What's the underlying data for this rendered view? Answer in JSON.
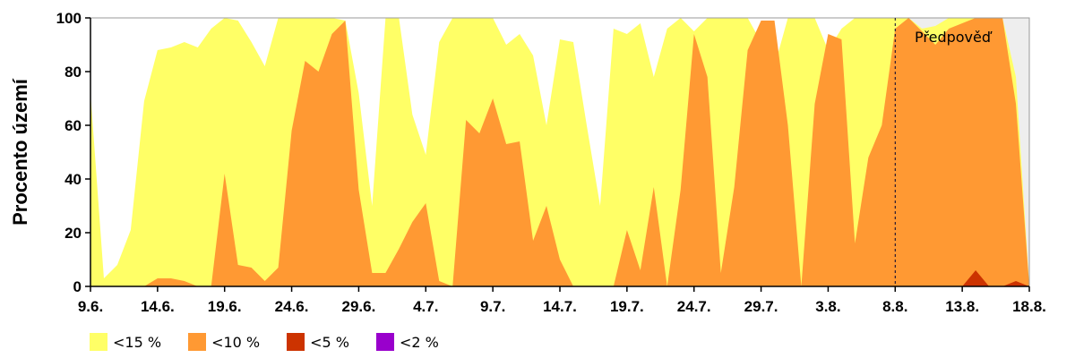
{
  "chart_data": {
    "type": "area",
    "title": "",
    "ylabel": "Procento území",
    "xlabel": "",
    "ylim": [
      0,
      100
    ],
    "y_ticks": [
      "0",
      "20",
      "40",
      "60",
      "80",
      "100"
    ],
    "x_tick_labels": [
      "9.6.",
      "14.6.",
      "19.6.",
      "24.6.",
      "29.6.",
      "4.7.",
      "9.7.",
      "14.7.",
      "19.7.",
      "24.7.",
      "29.7.",
      "3.8.",
      "8.8.",
      "13.8.",
      "18.8."
    ],
    "x_tick_step_days": 5,
    "day_count": 71,
    "forecast_start_day_index": 60,
    "annotation": "Předpověď",
    "legend_position": "bottom",
    "colors": {
      "lt15": "#ffff66",
      "lt10": "#ff9933",
      "lt5": "#cc3300",
      "lt2": "#9900cc",
      "forecast_bg": "#eeeeee"
    },
    "series": [
      {
        "name": "<15 %",
        "values": [
          72,
          3,
          8,
          21,
          69,
          88,
          89,
          91,
          89,
          96,
          100,
          99,
          91,
          82,
          100,
          100,
          100,
          100,
          100,
          99,
          72,
          30,
          100,
          100,
          64,
          49,
          91,
          100,
          100,
          100,
          100,
          90,
          94,
          86,
          60,
          92,
          91,
          60,
          30,
          96,
          94,
          98,
          78,
          96,
          100,
          95,
          100,
          100,
          100,
          100,
          91,
          82,
          100,
          100,
          100,
          88,
          96,
          100,
          100,
          100,
          100,
          100,
          96,
          97,
          100,
          100,
          100,
          100,
          100,
          78,
          0
        ]
      },
      {
        "name": "<10 %",
        "values": [
          0,
          0,
          0,
          0,
          0,
          3,
          3,
          2,
          0,
          0,
          42,
          8,
          7,
          2,
          7,
          58,
          84,
          80,
          94,
          99,
          36,
          5,
          5,
          14,
          24,
          31,
          2,
          0,
          62,
          57,
          70,
          53,
          54,
          17,
          30,
          10,
          0,
          0,
          0,
          0,
          21,
          6,
          37,
          0,
          36,
          94,
          78,
          5,
          37,
          88,
          99,
          99,
          60,
          0,
          68,
          94,
          92,
          16,
          48,
          60,
          96,
          100,
          95,
          90,
          96,
          98,
          100,
          100,
          100,
          68,
          0
        ]
      },
      {
        "name": "<5 %",
        "values": [
          0,
          0,
          0,
          0,
          0,
          0,
          0,
          0,
          0,
          0,
          0,
          0,
          0,
          0,
          0,
          0,
          0,
          0,
          0,
          0,
          0,
          0,
          0,
          0,
          0,
          0,
          0,
          0,
          0,
          0,
          0,
          0,
          0,
          0,
          0,
          0,
          0,
          0,
          0,
          0,
          0,
          0,
          0,
          0,
          0,
          0,
          0,
          0,
          0,
          0,
          0,
          0,
          0,
          0,
          0,
          0,
          0,
          0,
          0,
          0,
          0,
          0,
          0,
          0,
          0,
          0,
          6,
          0,
          0,
          2,
          0
        ]
      },
      {
        "name": "<2 %",
        "values": [
          0,
          0,
          0,
          0,
          0,
          0,
          0,
          0,
          0,
          0,
          0,
          0,
          0,
          0,
          0,
          0,
          0,
          0,
          0,
          0,
          0,
          0,
          0,
          0,
          0,
          0,
          0,
          0,
          0,
          0,
          0,
          0,
          0,
          0,
          0,
          0,
          0,
          0,
          0,
          0,
          0,
          0,
          0,
          0,
          0,
          0,
          0,
          0,
          0,
          0,
          0,
          0,
          0,
          0,
          0,
          0,
          0,
          0,
          0,
          0,
          0,
          0,
          0,
          0,
          0,
          0,
          0,
          0,
          0,
          0,
          0
        ]
      }
    ]
  }
}
